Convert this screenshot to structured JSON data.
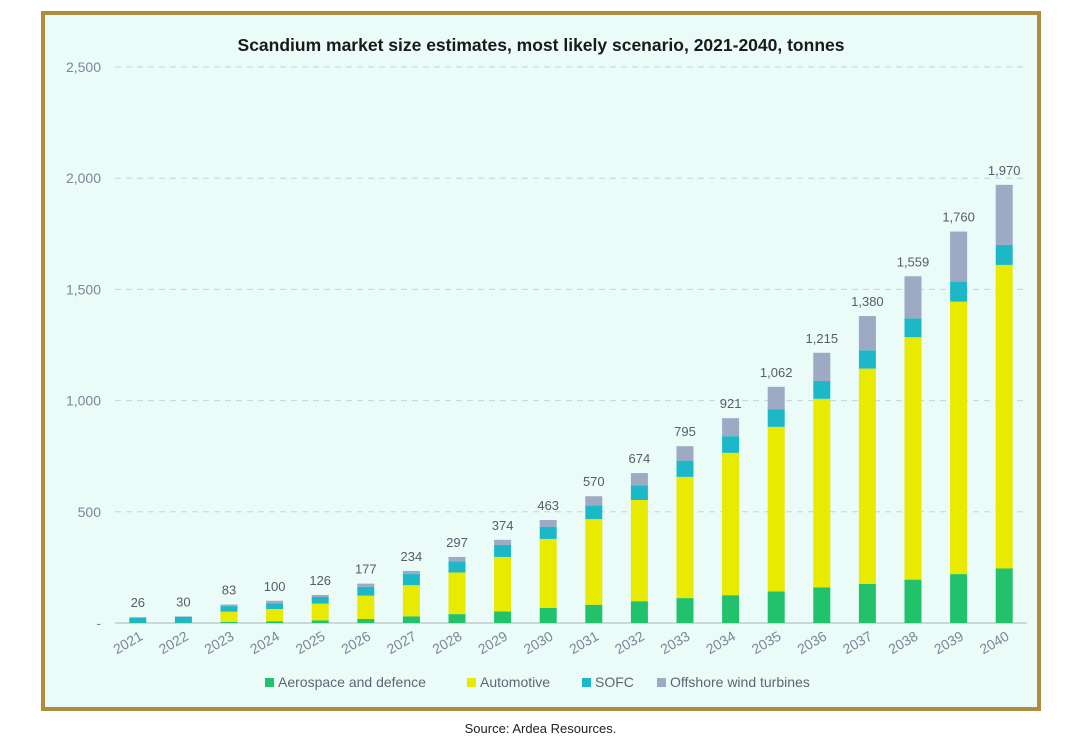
{
  "chart_data": {
    "type": "bar",
    "stacked": true,
    "title": "Scandium market size estimates, most likely scenario, 2021-2040, tonnes",
    "categories": [
      "2021",
      "2022",
      "2023",
      "2024",
      "2025",
      "2026",
      "2027",
      "2028",
      "2029",
      "2030",
      "2031",
      "2032",
      "2033",
      "2034",
      "2035",
      "2036",
      "2037",
      "2038",
      "2039",
      "2040"
    ],
    "totals": [
      26,
      30,
      83,
      100,
      126,
      177,
      234,
      297,
      374,
      463,
      570,
      674,
      795,
      921,
      1062,
      1215,
      1380,
      1559,
      1760,
      1970
    ],
    "total_labels": [
      "26",
      "30",
      "83",
      "100",
      "126",
      "177",
      "234",
      "297",
      "374",
      "463",
      "570",
      "674",
      "795",
      "921",
      "1,062",
      "1,215",
      "1,380",
      "1,559",
      "1,760",
      "1,970"
    ],
    "series": [
      {
        "name": "Aerospace and defence",
        "color": "#22c16b",
        "values": [
          2,
          2,
          5,
          8,
          12,
          18,
          30,
          40,
          52,
          68,
          82,
          98,
          112,
          125,
          142,
          160,
          176,
          195,
          220,
          245
        ]
      },
      {
        "name": "Automotive",
        "color": "#e8ea00",
        "values": [
          0,
          0,
          46,
          55,
          75,
          105,
          140,
          187,
          245,
          310,
          385,
          455,
          545,
          640,
          740,
          848,
          968,
          1090,
          1225,
          1365
        ]
      },
      {
        "name": "SOFC",
        "color": "#1db8c8",
        "values": [
          22,
          26,
          25,
          25,
          30,
          40,
          50,
          50,
          54,
          55,
          62,
          65,
          73,
          75,
          78,
          80,
          82,
          85,
          90,
          90
        ]
      },
      {
        "name": "Offshore wind turbines",
        "color": "#9ea9c4",
        "values": [
          2,
          2,
          7,
          12,
          9,
          14,
          14,
          20,
          23,
          30,
          41,
          56,
          65,
          81,
          102,
          127,
          154,
          189,
          225,
          270
        ]
      }
    ],
    "ylim": [
      0,
      2500
    ],
    "yticks": [
      0,
      500,
      1000,
      1500,
      2000,
      2500
    ],
    "ytick_labels": [
      "-",
      "500",
      "1,000",
      "1,500",
      "2,000",
      "2,500"
    ],
    "grid": true,
    "legend": "bottom"
  },
  "source": "Source: Ardea Resources."
}
